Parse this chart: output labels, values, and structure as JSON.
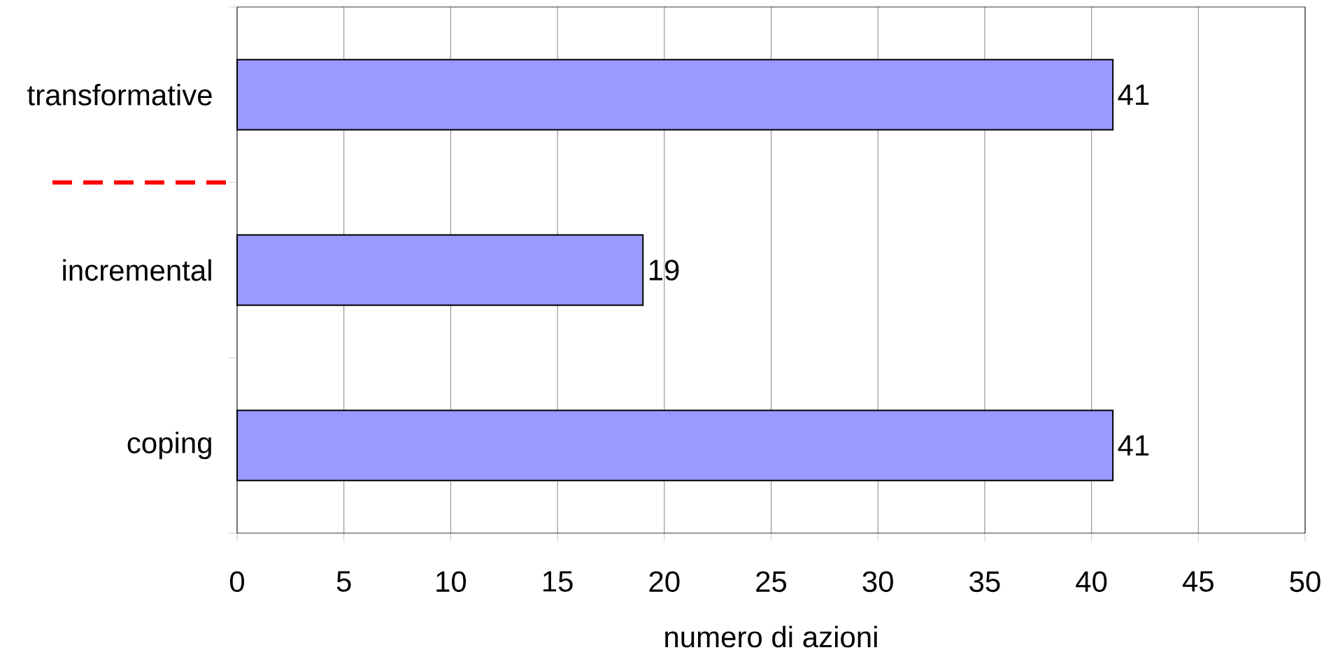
{
  "chart_data": {
    "type": "bar",
    "orientation": "horizontal",
    "categories": [
      "transformative",
      "incremental",
      "coping"
    ],
    "values": [
      41,
      19,
      41
    ],
    "color": "#9999ff",
    "xlim": [
      0,
      50
    ],
    "xticks": [
      0,
      5,
      10,
      15,
      20,
      25,
      30,
      35,
      40,
      45,
      50
    ],
    "xlabel": "numero di azioni",
    "grid": "x",
    "data_labels": true
  }
}
